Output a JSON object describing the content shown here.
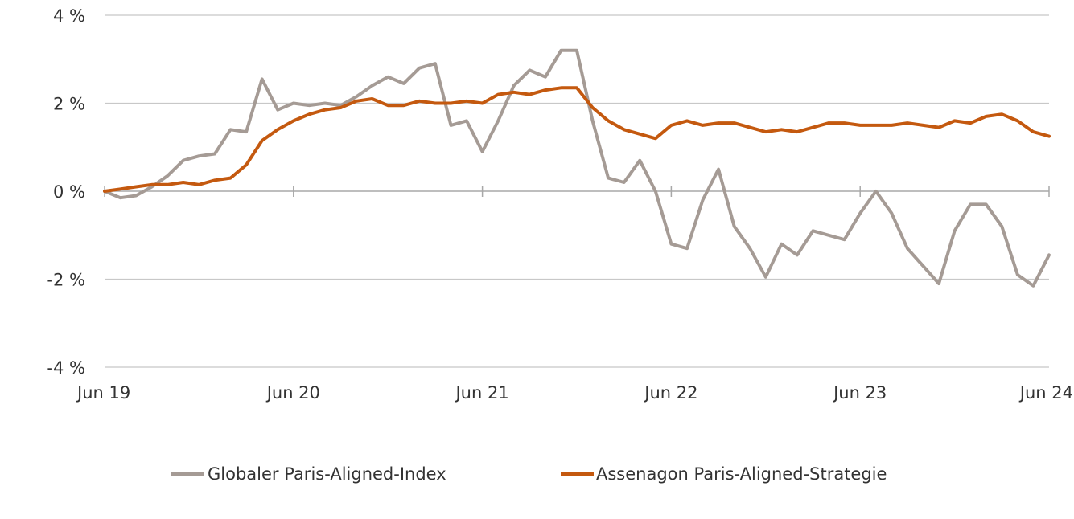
{
  "chart_data": {
    "type": "line",
    "title": "",
    "xlabel": "",
    "ylabel": "",
    "ylim": [
      -4,
      4
    ],
    "yticks": [
      4,
      2,
      0,
      -2,
      -4
    ],
    "ytick_labels": [
      "4 %",
      "2 %",
      "0 %",
      "-2 %",
      "-4 %"
    ],
    "xlim": [
      "2019-06",
      "2024-06"
    ],
    "xticks": [
      "2019-06",
      "2020-06",
      "2021-06",
      "2022-06",
      "2023-06",
      "2024-06"
    ],
    "xtick_labels": [
      "Jun 19",
      "Jun 20",
      "Jun 21",
      "Jun 22",
      "Jun 23",
      "Jun 24"
    ],
    "grid": true,
    "legend_position": "bottom-center",
    "series": [
      {
        "name": "Globaler Paris-Aligned-Index",
        "color": "#a59b95",
        "x": [
          "2019-06",
          "2019-07",
          "2019-08",
          "2019-09",
          "2019-10",
          "2019-11",
          "2019-12",
          "2020-01",
          "2020-02",
          "2020-03",
          "2020-04",
          "2020-05",
          "2020-06",
          "2020-07",
          "2020-08",
          "2020-09",
          "2020-10",
          "2020-11",
          "2020-12",
          "2021-01",
          "2021-02",
          "2021-03",
          "2021-04",
          "2021-05",
          "2021-06",
          "2021-07",
          "2021-08",
          "2021-09",
          "2021-10",
          "2021-11",
          "2021-12",
          "2022-01",
          "2022-02",
          "2022-03",
          "2022-04",
          "2022-05",
          "2022-06",
          "2022-07",
          "2022-08",
          "2022-09",
          "2022-10",
          "2022-11",
          "2022-12",
          "2023-01",
          "2023-02",
          "2023-03",
          "2023-04",
          "2023-05",
          "2023-06",
          "2023-07",
          "2023-08",
          "2023-09",
          "2023-10",
          "2023-11",
          "2023-12",
          "2024-01",
          "2024-02",
          "2024-03",
          "2024-04",
          "2024-05",
          "2024-06"
        ],
        "values": [
          0.0,
          -0.15,
          -0.1,
          0.1,
          0.35,
          0.7,
          0.8,
          0.85,
          1.4,
          1.35,
          2.55,
          1.85,
          2.0,
          1.95,
          2.0,
          1.95,
          2.15,
          2.4,
          2.6,
          2.45,
          2.8,
          2.9,
          1.5,
          1.6,
          0.9,
          1.6,
          2.4,
          2.75,
          2.6,
          3.2,
          3.2,
          1.6,
          0.3,
          0.2,
          0.7,
          0.0,
          -1.2,
          -1.3,
          -0.2,
          0.5,
          -0.8,
          -1.3,
          -1.95,
          -1.2,
          -1.45,
          -0.9,
          -1.0,
          -1.1,
          -0.5,
          0.0,
          -0.5,
          -1.3,
          -1.7,
          -2.1,
          -0.9,
          -0.3,
          -0.3,
          -0.8,
          -1.9,
          -2.15,
          -1.45
        ]
      },
      {
        "name": "Assenagon Paris-Aligned-Strategie",
        "color": "#c4590f",
        "x": [
          "2019-06",
          "2019-07",
          "2019-08",
          "2019-09",
          "2019-10",
          "2019-11",
          "2019-12",
          "2020-01",
          "2020-02",
          "2020-03",
          "2020-04",
          "2020-05",
          "2020-06",
          "2020-07",
          "2020-08",
          "2020-09",
          "2020-10",
          "2020-11",
          "2020-12",
          "2021-01",
          "2021-02",
          "2021-03",
          "2021-04",
          "2021-05",
          "2021-06",
          "2021-07",
          "2021-08",
          "2021-09",
          "2021-10",
          "2021-11",
          "2021-12",
          "2022-01",
          "2022-02",
          "2022-03",
          "2022-04",
          "2022-05",
          "2022-06",
          "2022-07",
          "2022-08",
          "2022-09",
          "2022-10",
          "2022-11",
          "2022-12",
          "2023-01",
          "2023-02",
          "2023-03",
          "2023-04",
          "2023-05",
          "2023-06",
          "2023-07",
          "2023-08",
          "2023-09",
          "2023-10",
          "2023-11",
          "2023-12",
          "2024-01",
          "2024-02",
          "2024-03",
          "2024-04",
          "2024-05",
          "2024-06"
        ],
        "values": [
          0.0,
          0.05,
          0.1,
          0.15,
          0.15,
          0.2,
          0.15,
          0.25,
          0.3,
          0.6,
          1.15,
          1.4,
          1.6,
          1.75,
          1.85,
          1.9,
          2.05,
          2.1,
          1.95,
          1.95,
          2.05,
          2.0,
          2.0,
          2.05,
          2.0,
          2.2,
          2.25,
          2.2,
          2.3,
          2.35,
          2.35,
          1.9,
          1.6,
          1.4,
          1.3,
          1.2,
          1.5,
          1.6,
          1.5,
          1.55,
          1.55,
          1.45,
          1.35,
          1.4,
          1.35,
          1.45,
          1.55,
          1.55,
          1.5,
          1.5,
          1.5,
          1.55,
          1.5,
          1.45,
          1.6,
          1.55,
          1.7,
          1.75,
          1.6,
          1.35,
          1.25
        ]
      }
    ]
  }
}
